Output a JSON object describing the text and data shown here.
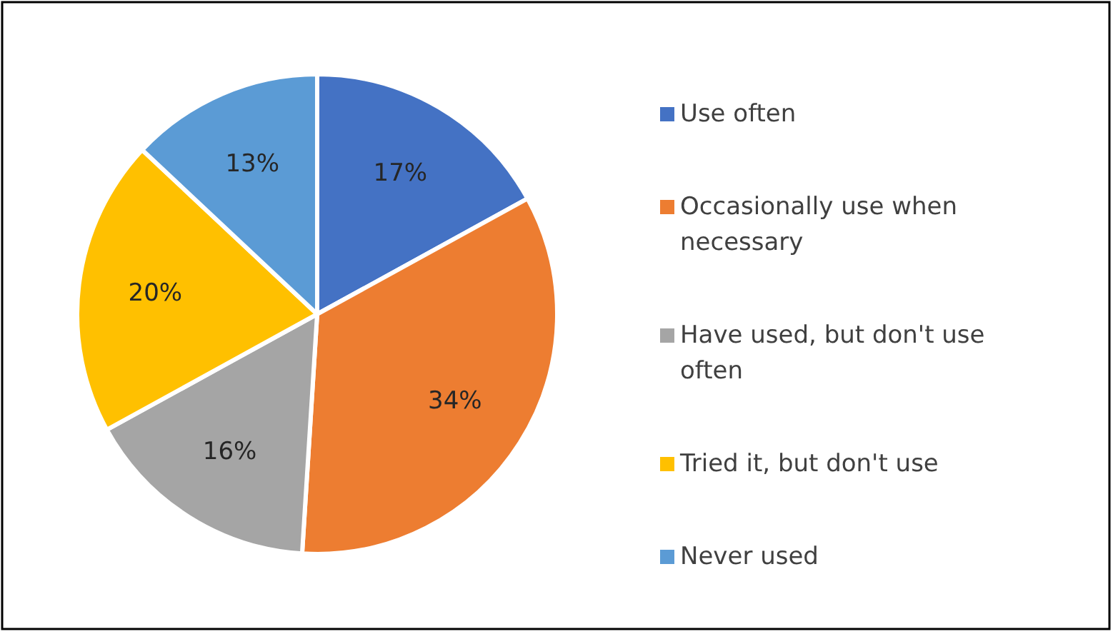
{
  "chart_data": {
    "type": "pie",
    "categories": [
      "Use often",
      "Occasionally use when necessary",
      "Have used, but don't use often",
      "Tried it, but don't use",
      "Never used"
    ],
    "values": [
      17,
      34,
      16,
      20,
      13
    ],
    "colors": [
      "#4472c4",
      "#ed7d31",
      "#a5a5a5",
      "#ffc000",
      "#5b9bd5"
    ],
    "value_labels": [
      "17%",
      "34%",
      "16%",
      "20%",
      "13%"
    ],
    "legend": "right"
  }
}
